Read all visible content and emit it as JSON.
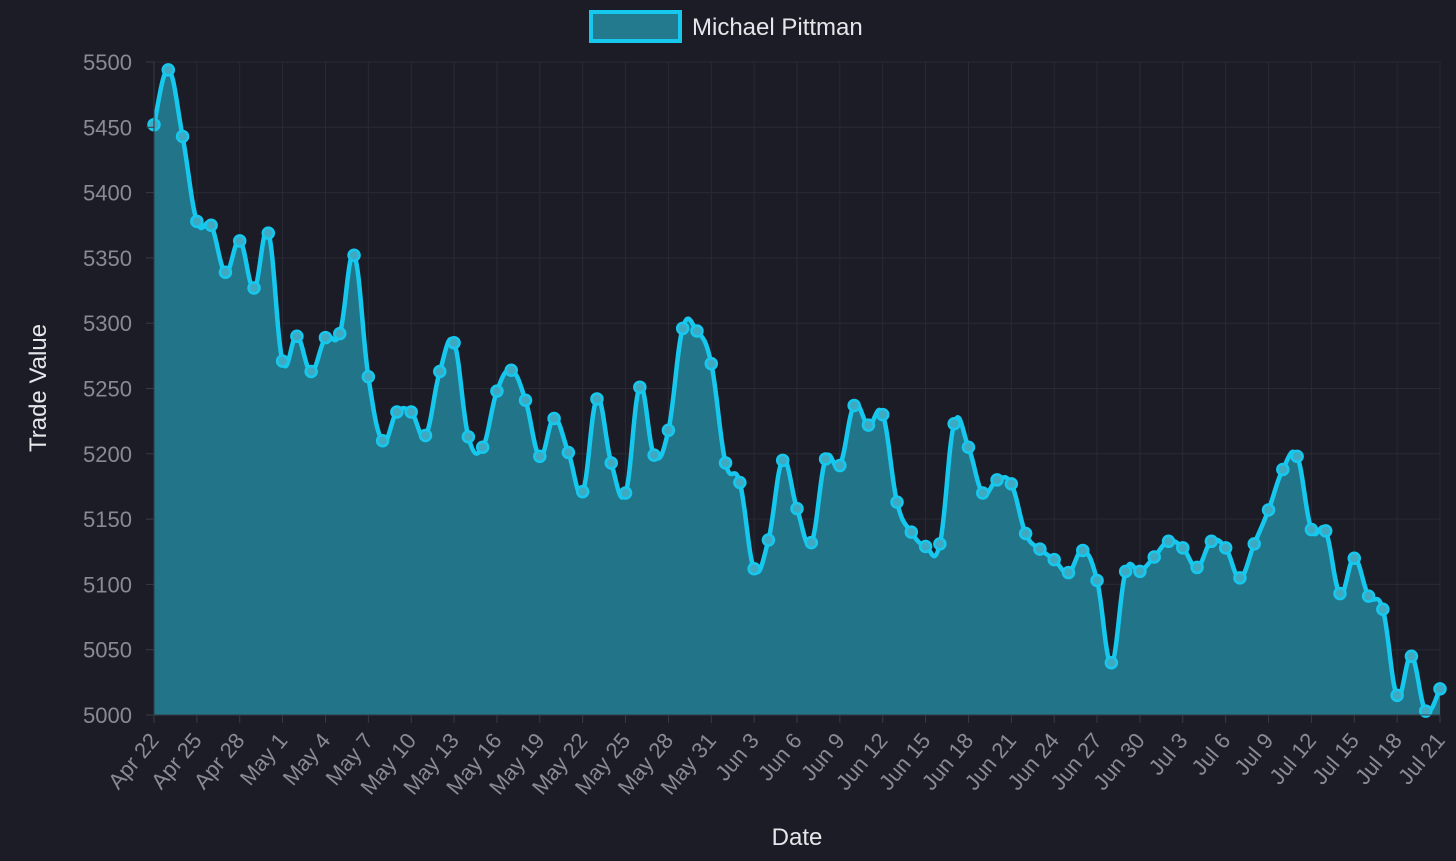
{
  "chart_data": {
    "type": "line",
    "xlabel": "Date",
    "ylabel": "Trade Value",
    "ylim": [
      5000,
      5500
    ],
    "yticks": [
      5000,
      5050,
      5100,
      5150,
      5200,
      5250,
      5300,
      5350,
      5400,
      5450,
      5500
    ],
    "x_tick_labels": [
      "Apr 22",
      "Apr 25",
      "Apr 28",
      "May 1",
      "May 4",
      "May 7",
      "May 10",
      "May 13",
      "May 16",
      "May 19",
      "May 22",
      "May 25",
      "May 28",
      "May 31",
      "Jun 3",
      "Jun 6",
      "Jun 9",
      "Jun 12",
      "Jun 15",
      "Jun 18",
      "Jun 21",
      "Jun 24",
      "Jun 27",
      "Jun 30",
      "Jul 3",
      "Jul 6",
      "Jul 9",
      "Jul 12",
      "Jul 15",
      "Jul 18",
      "Jul 21"
    ],
    "grid": true,
    "legend_position": "top-center",
    "colors": {
      "line": "#16c8ee",
      "fill": "#23798e",
      "background": "#1c1c26"
    },
    "series": [
      {
        "name": "Michael Pittman",
        "values": [
          5452,
          5494,
          5443,
          5378,
          5375,
          5339,
          5363,
          5327,
          5369,
          5271,
          5290,
          5263,
          5289,
          5292,
          5352,
          5259,
          5210,
          5232,
          5232,
          5214,
          5263,
          5285,
          5213,
          5205,
          5248,
          5264,
          5241,
          5198,
          5227,
          5201,
          5171,
          5242,
          5193,
          5170,
          5251,
          5199,
          5218,
          5296,
          5294,
          5269,
          5193,
          5178,
          5112,
          5134,
          5195,
          5158,
          5132,
          5196,
          5191,
          5237,
          5222,
          5230,
          5163,
          5140,
          5129,
          5131,
          5223,
          5205,
          5170,
          5180,
          5177,
          5139,
          5127,
          5119,
          5109,
          5126,
          5103,
          5040,
          5110,
          5110,
          5121,
          5133,
          5128,
          5113,
          5133,
          5128,
          5105,
          5131,
          5157,
          5188,
          5198,
          5142,
          5141,
          5093,
          5120,
          5091,
          5081,
          5015,
          5045,
          5003,
          5020
        ]
      }
    ]
  }
}
